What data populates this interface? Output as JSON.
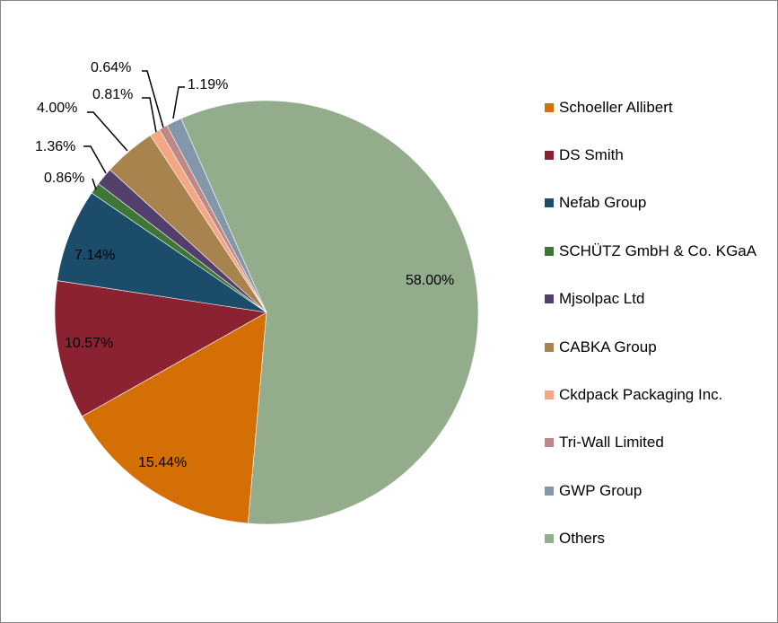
{
  "chart_data": {
    "type": "pie",
    "title": "",
    "start_angle_deg": 185,
    "legend_position": "right",
    "categories": [
      "Schoeller Allibert",
      "DS Smith",
      "Nefab Group",
      "SCHÜTZ GmbH & Co. KGaA",
      "Mjsolpac Ltd",
      "CABKA Group",
      "Ckdpack Packaging Inc.",
      "Tri-Wall Limited",
      "GWP Group",
      "Others"
    ],
    "values": [
      15.44,
      10.57,
      7.14,
      0.86,
      1.36,
      4.0,
      0.81,
      0.64,
      1.19,
      58.0
    ],
    "labels": [
      "15.44%",
      "10.57%",
      "7.14%",
      "0.86%",
      "1.36%",
      "4.00%",
      "0.81%",
      "0.64%",
      "1.19%",
      "58.00%"
    ],
    "colors": [
      "#D46F06",
      "#8B2232",
      "#1B4D6B",
      "#3E7637",
      "#523F6B",
      "#A8834E",
      "#F3A785",
      "#BE8886",
      "#8496AA",
      "#93AD8C"
    ]
  }
}
